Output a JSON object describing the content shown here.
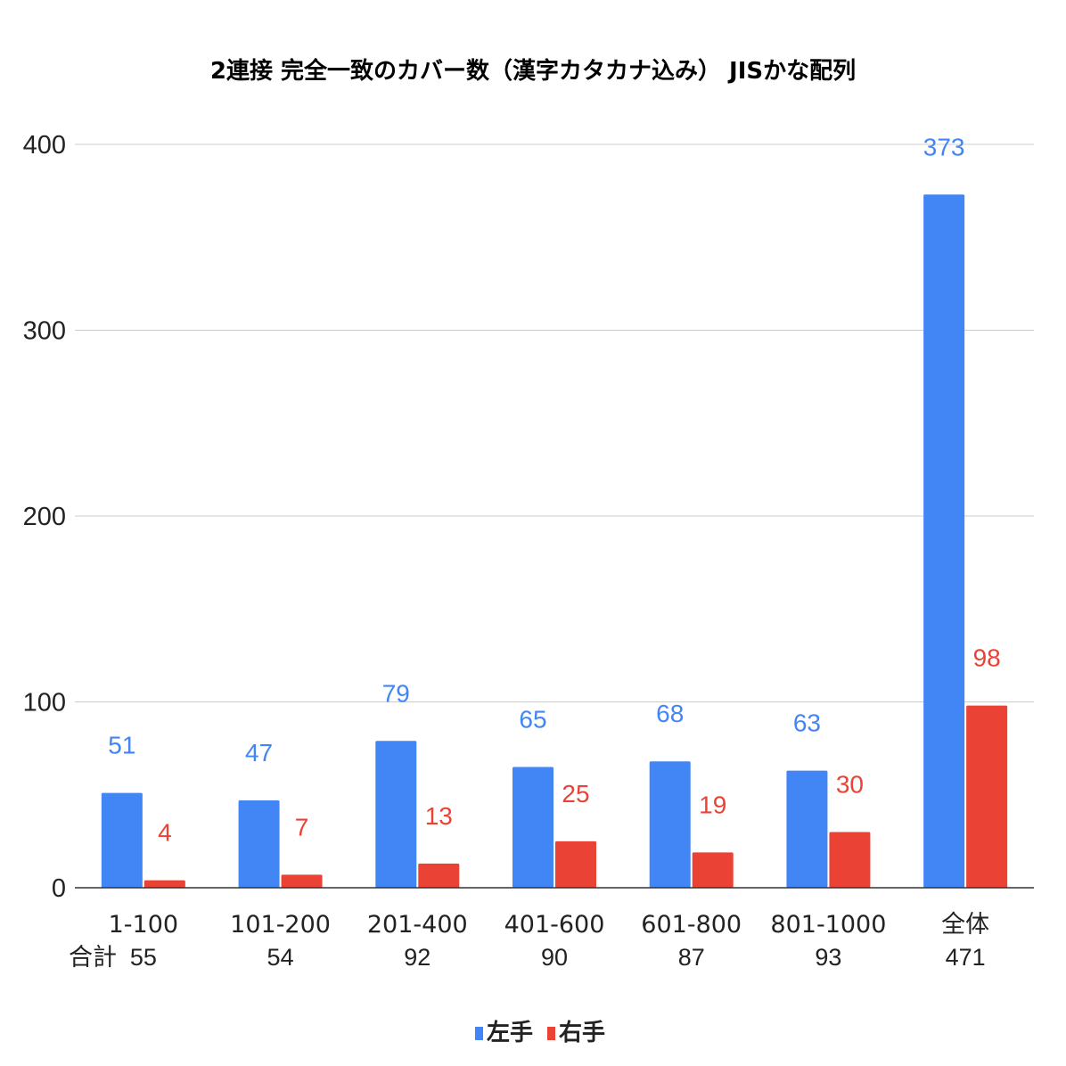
{
  "chart_data": {
    "type": "bar",
    "title": "2連接 完全一致のカバー数（漢字カタカナ込み） JISかな配列",
    "categories": [
      "1-100",
      "101-200",
      "201-400",
      "401-600",
      "601-800",
      "801-1000",
      "全体"
    ],
    "totals_label": "合計",
    "totals": [
      "55",
      "54",
      "92",
      "90",
      "87",
      "93",
      "471"
    ],
    "series": [
      {
        "name": "左手",
        "color": "#4285f4",
        "values": [
          51,
          47,
          79,
          65,
          68,
          63,
          373
        ]
      },
      {
        "name": "右手",
        "color": "#ea4335",
        "values": [
          4,
          7,
          13,
          25,
          19,
          30,
          98
        ]
      }
    ],
    "ylim": [
      0,
      400
    ],
    "yticks": [
      0,
      100,
      200,
      300,
      400
    ],
    "grid": true,
    "legend_position": "bottom"
  }
}
